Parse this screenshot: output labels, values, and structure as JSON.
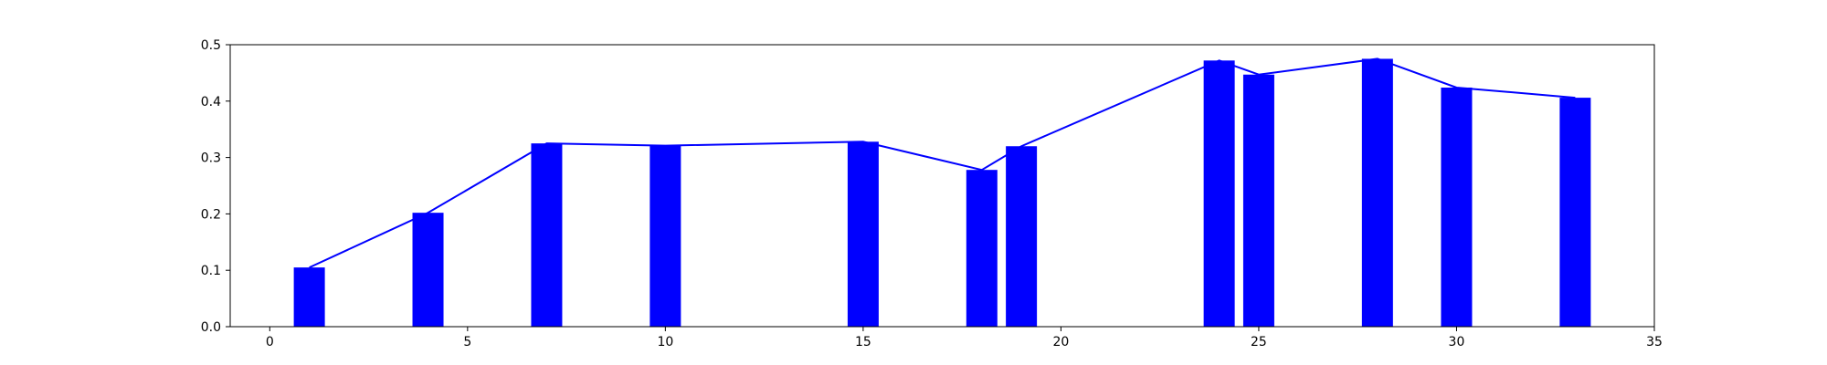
{
  "chart_data": {
    "type": "bar",
    "x": [
      1,
      4,
      7,
      10,
      15,
      18,
      19,
      24,
      25,
      28,
      30,
      33
    ],
    "values": [
      0.105,
      0.202,
      0.325,
      0.321,
      0.328,
      0.278,
      0.32,
      0.472,
      0.447,
      0.475,
      0.424,
      0.406
    ],
    "line_values": [
      0.105,
      0.202,
      0.325,
      0.321,
      0.328,
      0.278,
      0.32,
      0.472,
      0.447,
      0.475,
      0.424,
      0.406
    ],
    "title": "",
    "xlabel": "",
    "ylabel": "",
    "xlim": [
      -1,
      35
    ],
    "ylim": [
      0,
      0.5
    ],
    "x_ticks": [
      0,
      5,
      10,
      15,
      20,
      25,
      30,
      35
    ],
    "x_tick_labels": [
      "0",
      "5",
      "10",
      "15",
      "20",
      "25",
      "30",
      "35"
    ],
    "y_ticks": [
      0.0,
      0.1,
      0.2,
      0.3,
      0.4,
      0.5
    ],
    "y_tick_labels": [
      "0.0",
      "0.1",
      "0.2",
      "0.3",
      "0.4",
      "0.5"
    ],
    "bar_color": "#0000ff",
    "line_color": "#0000ff",
    "grid": false,
    "legend": "none"
  }
}
